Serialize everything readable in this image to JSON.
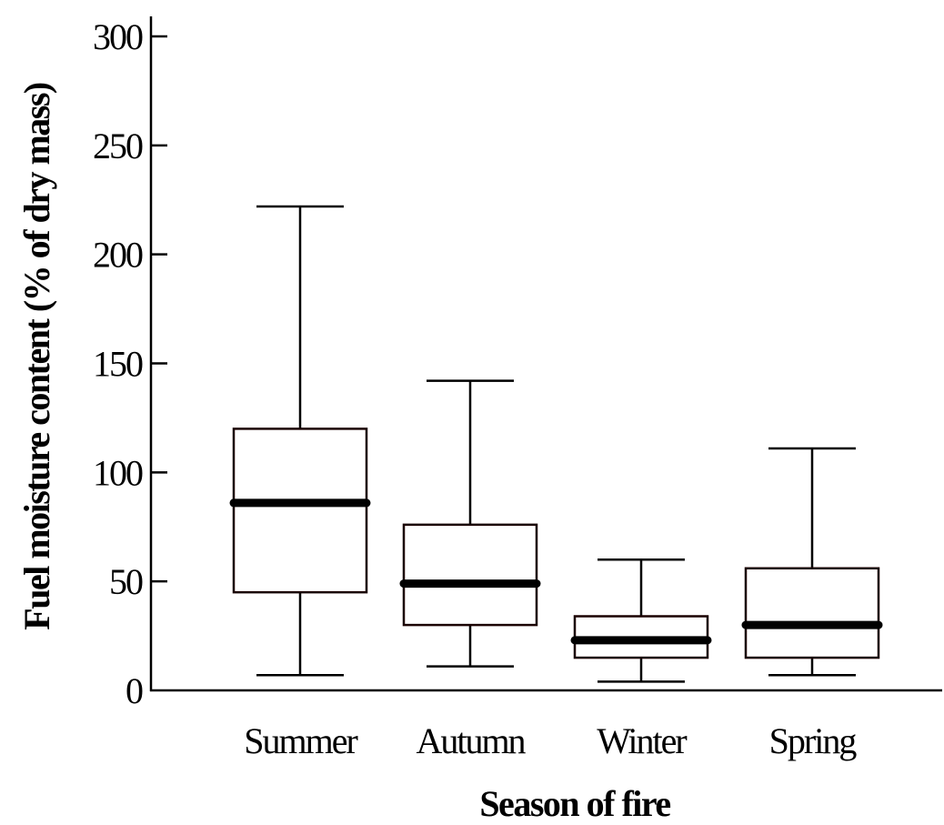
{
  "chart_data": {
    "type": "box",
    "xlabel": "Season of fire",
    "ylabel": "Fuel moisture content (% of dry mass)",
    "ylim": [
      0,
      300
    ],
    "yticks": [
      0,
      50,
      100,
      150,
      200,
      250,
      300
    ],
    "categories": [
      "Summer",
      "Autumn",
      "Winter",
      "Spring"
    ],
    "boxes": [
      {
        "category": "Summer",
        "min": 7,
        "q1": 45,
        "median": 86,
        "q3": 120,
        "max": 222
      },
      {
        "category": "Autumn",
        "min": 11,
        "q1": 30,
        "median": 49,
        "q3": 76,
        "max": 142
      },
      {
        "category": "Winter",
        "min": 4,
        "q1": 15,
        "median": 23,
        "q3": 34,
        "max": 60
      },
      {
        "category": "Spring",
        "min": 7,
        "q1": 15,
        "median": 30,
        "q3": 56,
        "max": 111
      }
    ],
    "grid": false,
    "legend": "none"
  }
}
